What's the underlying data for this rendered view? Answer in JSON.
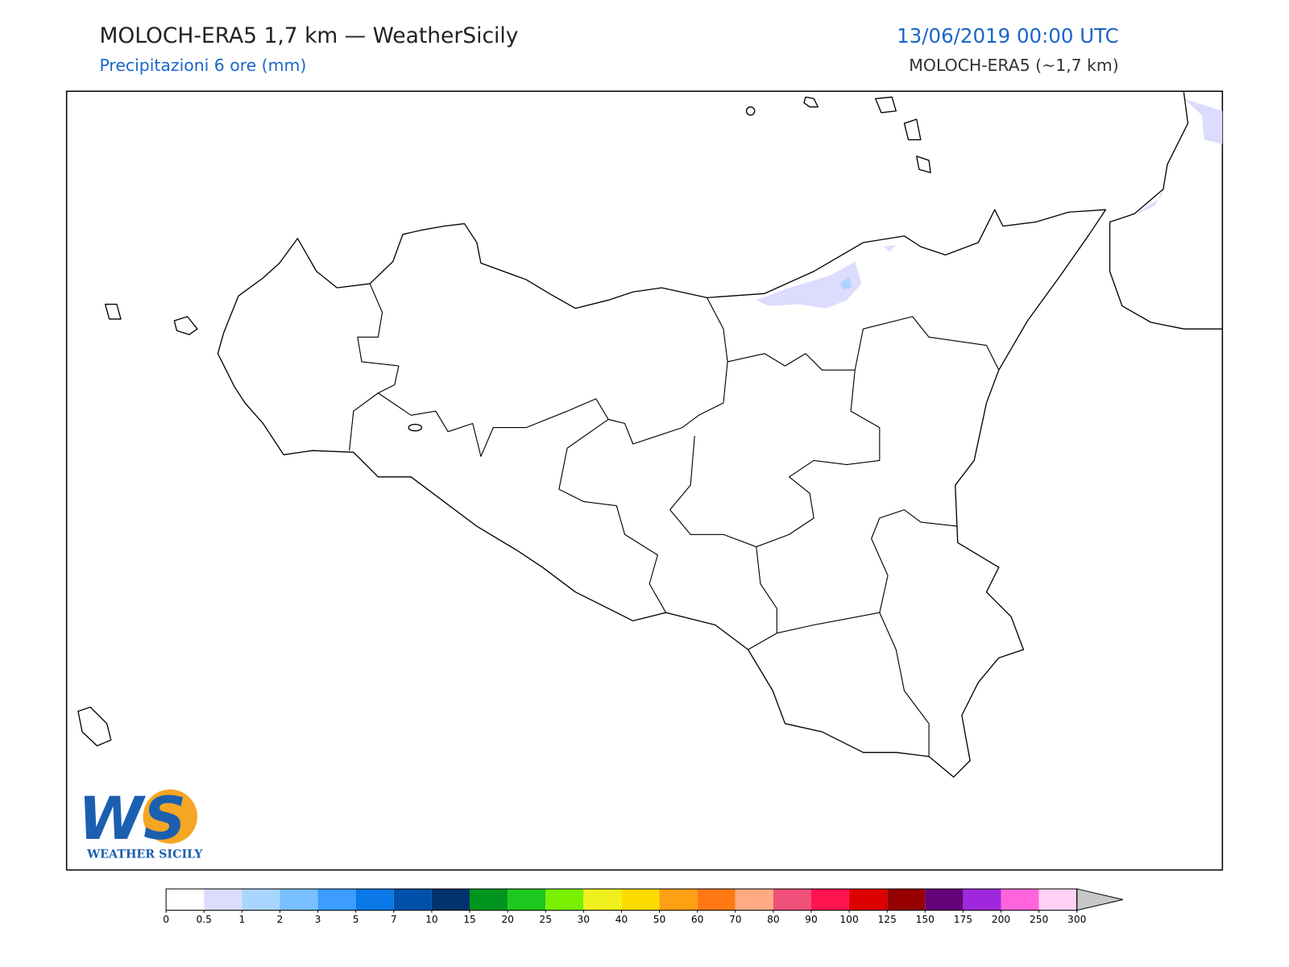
{
  "header": {
    "title": "MOLOCH-ERA5 1,7 km — WeatherSicily",
    "subtitle": "Precipitazioni 6 ore (mm)",
    "datetime": "13/06/2019 00:00 UTC",
    "model": "MOLOCH-ERA5 (~1,7 km)"
  },
  "logo": {
    "mark": "WS",
    "name": "WEATHER SICILY"
  },
  "colorbar": {
    "ticks": [
      0,
      0.5,
      1,
      2,
      3,
      5,
      7,
      10,
      15,
      20,
      25,
      30,
      40,
      50,
      60,
      70,
      80,
      90,
      100,
      125,
      150,
      175,
      200,
      250,
      300
    ],
    "colors": [
      "#ffffff",
      "#dcdcfe",
      "#a8d6ff",
      "#78c0ff",
      "#3c9cff",
      "#0a78e6",
      "#0050aa",
      "#00326e",
      "#00961e",
      "#1ec81e",
      "#78f000",
      "#f0f01e",
      "#ffdc00",
      "#ffa014",
      "#ff7814",
      "#ffaa82",
      "#f0507a",
      "#ff1450",
      "#dc0000",
      "#960000",
      "#640078",
      "#a028dc",
      "#ff64dc",
      "#ffd2f5"
    ],
    "over_color": "#c8c8c8"
  }
}
